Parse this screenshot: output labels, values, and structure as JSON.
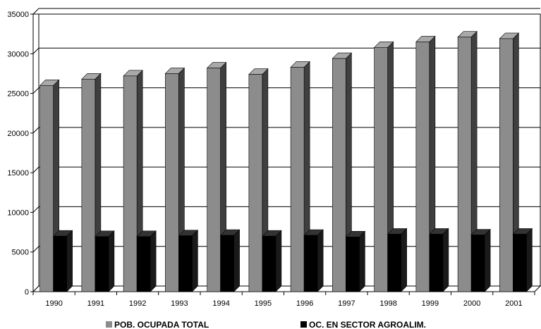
{
  "chart_data": {
    "type": "bar",
    "categories": [
      "1990",
      "1991",
      "1992",
      "1993",
      "1994",
      "1995",
      "1996",
      "1997",
      "1998",
      "1999",
      "2000",
      "2001"
    ],
    "series": [
      {
        "name": "POB. OCUPADA TOTAL",
        "color": "#8c8c8c",
        "values": [
          26000,
          26800,
          27200,
          27500,
          28200,
          27400,
          28300,
          29400,
          30800,
          31500,
          32100,
          31900
        ]
      },
      {
        "name": "OC. EN SECTOR AGROALIM.",
        "color": "#000000",
        "values": [
          7000,
          6950,
          6950,
          7050,
          7100,
          7000,
          7100,
          6900,
          7250,
          7250,
          7150,
          7250
        ]
      }
    ],
    "yticks": [
      "0",
      "5000",
      "10000",
      "15000",
      "20000",
      "25000",
      "30000",
      "35000"
    ],
    "ylim": [
      0,
      35000
    ],
    "grid": true,
    "legend_position": "bottom",
    "title": "",
    "xlabel": "",
    "ylabel": ""
  }
}
